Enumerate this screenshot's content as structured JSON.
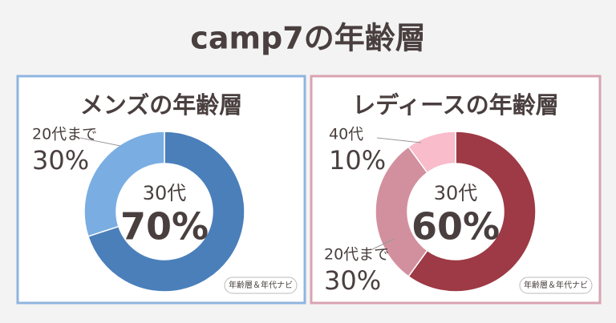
{
  "title": "camp7の年齢層",
  "chart_data": [
    {
      "type": "donut",
      "title": "メンズの年齢層",
      "categories": [
        "30代",
        "20代まで"
      ],
      "values": [
        70,
        30
      ],
      "value_labels": [
        "70%",
        "30%"
      ],
      "colors": [
        "#4a7fba",
        "#7aaee2"
      ],
      "badge": "年齢層＆年代ナビ"
    },
    {
      "type": "donut",
      "title": "レディースの年齢層",
      "categories": [
        "30代",
        "20代まで",
        "40代"
      ],
      "values": [
        60,
        30,
        10
      ],
      "value_labels": [
        "60%",
        "30%",
        "10%"
      ],
      "colors": [
        "#9d3a45",
        "#d2909e",
        "#f8bccb"
      ],
      "badge": "年齢層＆年代ナビ"
    }
  ]
}
